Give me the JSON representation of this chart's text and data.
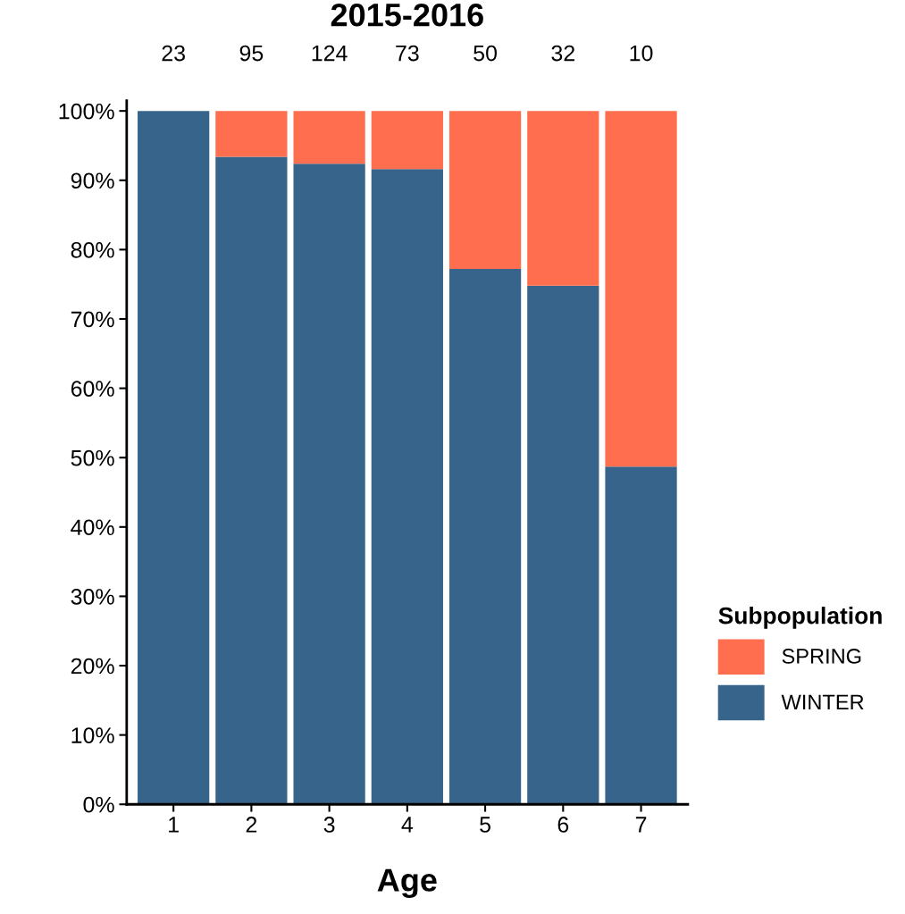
{
  "chart_data": {
    "type": "bar",
    "title": "2015-2016",
    "xlabel": "Age",
    "stacked": true,
    "categories": [
      "1",
      "2",
      "3",
      "4",
      "5",
      "6",
      "7"
    ],
    "series": [
      {
        "name": "WINTER",
        "color": "#36648b",
        "values": [
          100,
          93.4,
          92.4,
          91.6,
          77.2,
          74.8,
          48.7
        ]
      },
      {
        "name": "SPRING",
        "color": "#ff6f4f",
        "values": [
          0,
          6.6,
          7.6,
          8.4,
          22.8,
          25.2,
          51.3
        ]
      }
    ],
    "annotations": [
      {
        "text": "23",
        "x": "1",
        "y": 100
      },
      {
        "text": "95",
        "x": "2",
        "y": 100
      },
      {
        "text": "124",
        "x": "3",
        "y": 100
      },
      {
        "text": "73",
        "x": "4",
        "y": 100
      },
      {
        "text": "50",
        "x": "5",
        "y": 100
      },
      {
        "text": "32",
        "x": "6",
        "y": 100
      },
      {
        "text": "10",
        "x": "7",
        "y": 100
      }
    ],
    "legend_title": "Subpopulation",
    "legend": "right",
    "ylim": [
      0,
      101.5
    ],
    "yticks": [
      {
        "value": 0,
        "label": "0%"
      },
      {
        "value": 10,
        "label": "10%"
      },
      {
        "value": 20,
        "label": "20%"
      },
      {
        "value": 30,
        "label": "30%"
      },
      {
        "value": 40,
        "label": "40%"
      },
      {
        "value": 50,
        "label": "50%"
      },
      {
        "value": 60,
        "label": "60%"
      },
      {
        "value": 70,
        "label": "70%"
      },
      {
        "value": 80,
        "label": "80%"
      },
      {
        "value": 90,
        "label": "90%"
      },
      {
        "value": 100,
        "label": "100%"
      }
    ],
    "grid": false
  }
}
